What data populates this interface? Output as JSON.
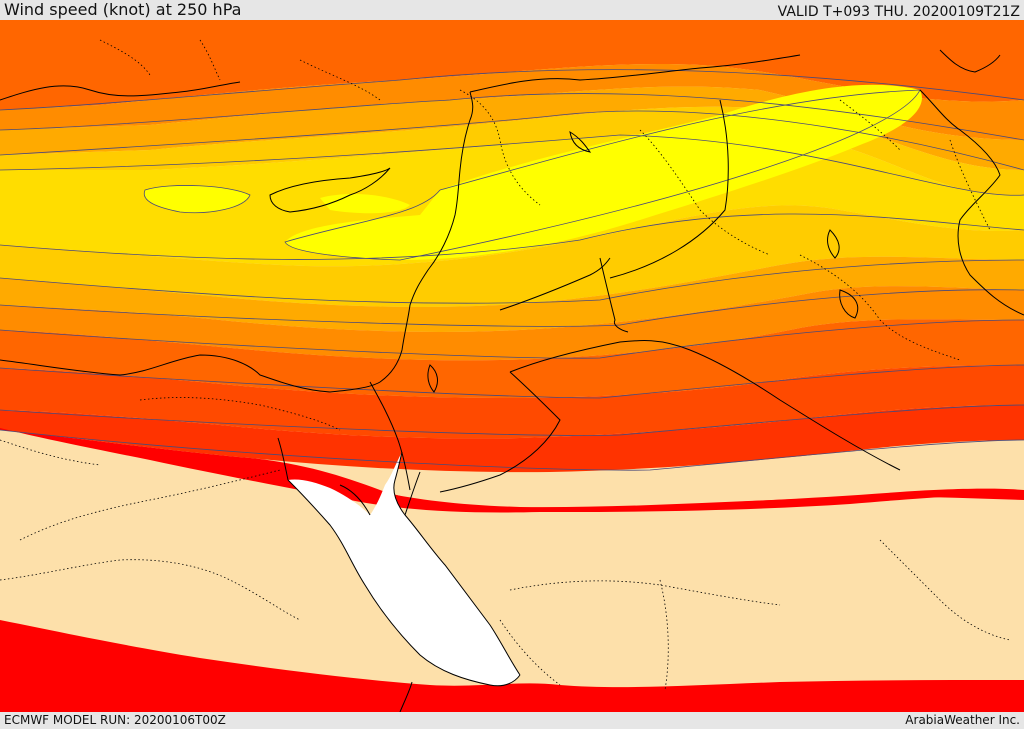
{
  "header": {
    "title": "Wind speed (knot) at 250 hPa",
    "valid_time": "VALID T+093 THU. 20200109T21Z"
  },
  "footer": {
    "model_run": "ECMWF MODEL RUN: 20200106T00Z",
    "credit": "ArabiaWeather Inc."
  },
  "map": {
    "variable": "wind speed",
    "level": "250 hPa",
    "unit": "knot",
    "palette": {
      "sea_white": "#ffffff",
      "low_wind": "#fde0aa",
      "band_red": "#ff0000",
      "band_red_orange": "#ff3300",
      "band_orange_red": "#ff4a00",
      "band_dark_orange": "#ff6600",
      "band_orange": "#ff8c00",
      "band_amber": "#ffaa00",
      "band_gold": "#ffcc00",
      "band_yellow_orange": "#ffdd00",
      "jet_core_yellow": "#ffff00",
      "contour_line": "#4a4a7a",
      "coastline": "#000000",
      "border": "#000000"
    }
  }
}
